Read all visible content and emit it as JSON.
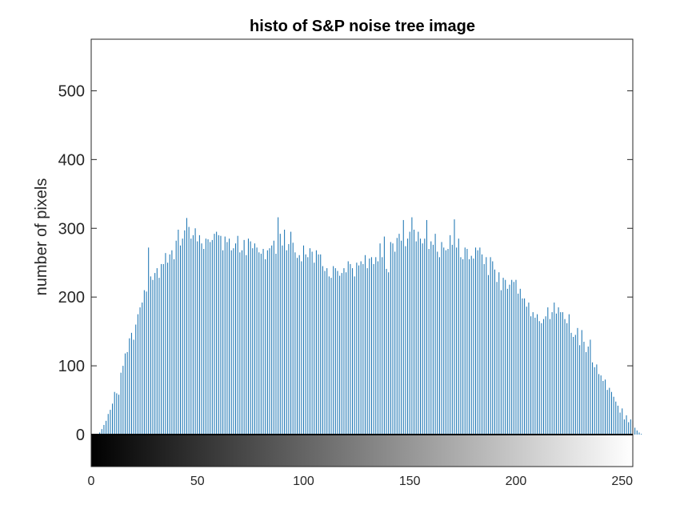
{
  "figure": {
    "background": "#ffffff"
  },
  "chart_data": {
    "type": "bar",
    "title": "histo of S&P noise  tree image",
    "xlabel": "",
    "ylabel": "number of pixels",
    "xlim": [
      0,
      255
    ],
    "ylim": [
      0,
      575
    ],
    "xticks": [
      0,
      50,
      100,
      150,
      200,
      250
    ],
    "yticks": [
      0,
      100,
      200,
      300,
      400,
      500
    ],
    "grid": false,
    "legend": "none",
    "bar_color": "#1f77b4",
    "colorbar": {
      "orientation": "horizontal",
      "colormap": "gray",
      "range": [
        0,
        255
      ]
    },
    "x_start": 0,
    "values": [
      0,
      0,
      0,
      1,
      3,
      8,
      14,
      20,
      30,
      36,
      45,
      62,
      60,
      58,
      90,
      100,
      118,
      120,
      140,
      148,
      138,
      160,
      175,
      185,
      192,
      210,
      208,
      272,
      230,
      225,
      235,
      242,
      228,
      248,
      248,
      264,
      250,
      262,
      268,
      255,
      282,
      298,
      275,
      285,
      297,
      315,
      302,
      285,
      290,
      300,
      281,
      290,
      278,
      270,
      285,
      284,
      280,
      283,
      292,
      295,
      290,
      289,
      268,
      288,
      280,
      285,
      268,
      271,
      278,
      289,
      265,
      268,
      283,
      261,
      285,
      281,
      271,
      278,
      272,
      265,
      263,
      270,
      255,
      268,
      271,
      275,
      282,
      263,
      316,
      292,
      275,
      298,
      268,
      277,
      295,
      279,
      265,
      257,
      261,
      252,
      275,
      262,
      258,
      271,
      266,
      250,
      268,
      262,
      262,
      245,
      238,
      242,
      230,
      228,
      245,
      242,
      238,
      231,
      235,
      242,
      236,
      252,
      248,
      242,
      230,
      250,
      246,
      252,
      248,
      261,
      242,
      256,
      258,
      248,
      258,
      252,
      278,
      258,
      288,
      241,
      236,
      280,
      278,
      266,
      286,
      292,
      282,
      312,
      274,
      285,
      295,
      316,
      298,
      281,
      295,
      285,
      278,
      285,
      312,
      270,
      281,
      276,
      292,
      266,
      258,
      280,
      272,
      268,
      270,
      290,
      276,
      313,
      272,
      285,
      258,
      255,
      272,
      270,
      255,
      260,
      256,
      272,
      268,
      272,
      262,
      248,
      258,
      232,
      258,
      252,
      240,
      222,
      236,
      210,
      228,
      225,
      212,
      218,
      225,
      222,
      225,
      205,
      212,
      198,
      198,
      186,
      192,
      172,
      178,
      170,
      175,
      165,
      162,
      168,
      172,
      185,
      168,
      178,
      192,
      176,
      185,
      178,
      178,
      168,
      162,
      175,
      148,
      142,
      145,
      155,
      130,
      152,
      135,
      120,
      128,
      138,
      105,
      98,
      102,
      88,
      86,
      78,
      80,
      65,
      68,
      62,
      55,
      48,
      42,
      32,
      38,
      22,
      28,
      18,
      22,
      20,
      10,
      6,
      3,
      1,
      0
    ]
  }
}
